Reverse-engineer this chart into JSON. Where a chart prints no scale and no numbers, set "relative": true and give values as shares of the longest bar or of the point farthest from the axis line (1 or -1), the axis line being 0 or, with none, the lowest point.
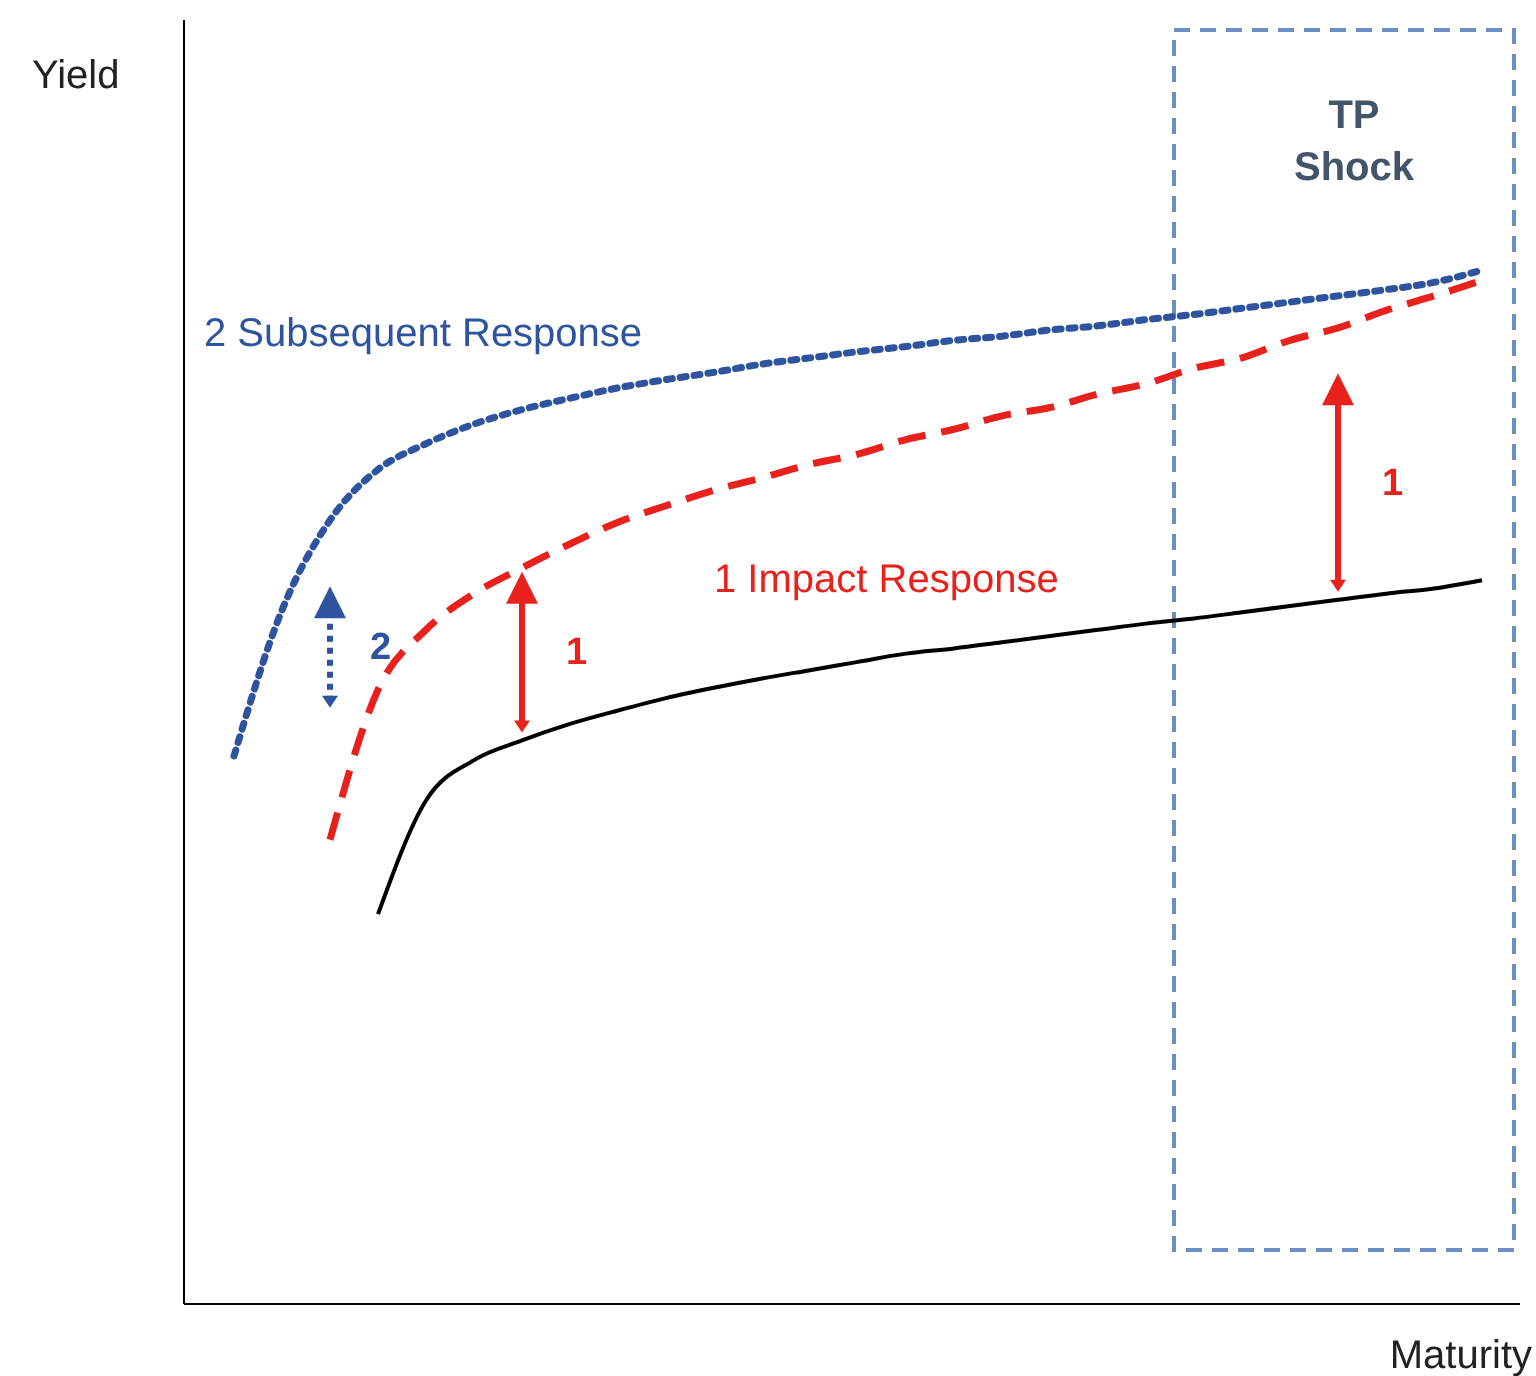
{
  "chart_data": {
    "type": "line",
    "relative": true,
    "xlabel": "Maturity",
    "ylabel": "Yield",
    "marker": "none",
    "categories": [
      null,
      null,
      null,
      null,
      null,
      null,
      null,
      null,
      null,
      null,
      null,
      null,
      null,
      null,
      null,
      null,
      null,
      null,
      null,
      null,
      null,
      null,
      null,
      null,
      null,
      null,
      null
    ],
    "series": [
      {
        "color": "#000000",
        "line_style": "solid",
        "values": [
          null,
          null,
          null,
          0.377,
          0.487,
          0.526,
          0.545,
          0.561,
          0.574,
          0.586,
          0.596,
          0.605,
          0.613,
          0.621,
          0.629,
          0.634,
          0.64,
          0.646,
          0.652,
          0.658,
          0.663,
          0.669,
          0.675,
          0.681,
          0.687,
          0.692,
          0.7
        ]
      },
      {
        "name": "1 Impact Response",
        "color": "#e8211c",
        "line_style": "dashed",
        "values": [
          null,
          null,
          0.449,
          0.594,
          0.652,
          0.687,
          0.712,
          0.735,
          0.756,
          0.772,
          0.787,
          0.799,
          0.812,
          0.822,
          0.836,
          0.846,
          0.859,
          0.867,
          0.88,
          0.89,
          0.905,
          0.915,
          0.932,
          0.944,
          0.961,
          0.975,
          0.99
        ]
      },
      {
        "name": "2 Subsequent Response",
        "color": "#2e54a0",
        "line_style": "dotted",
        "values": [
          0.53,
          0.671,
          0.758,
          0.807,
          0.832,
          0.851,
          0.865,
          0.876,
          0.886,
          0.894,
          0.901,
          0.909,
          0.915,
          0.921,
          0.926,
          0.932,
          0.936,
          0.942,
          0.946,
          0.952,
          0.957,
          0.963,
          0.969,
          0.975,
          0.981,
          0.988,
          1
        ]
      }
    ],
    "annotations": [
      "TP\nShock",
      "1",
      "1",
      "2"
    ]
  }
}
